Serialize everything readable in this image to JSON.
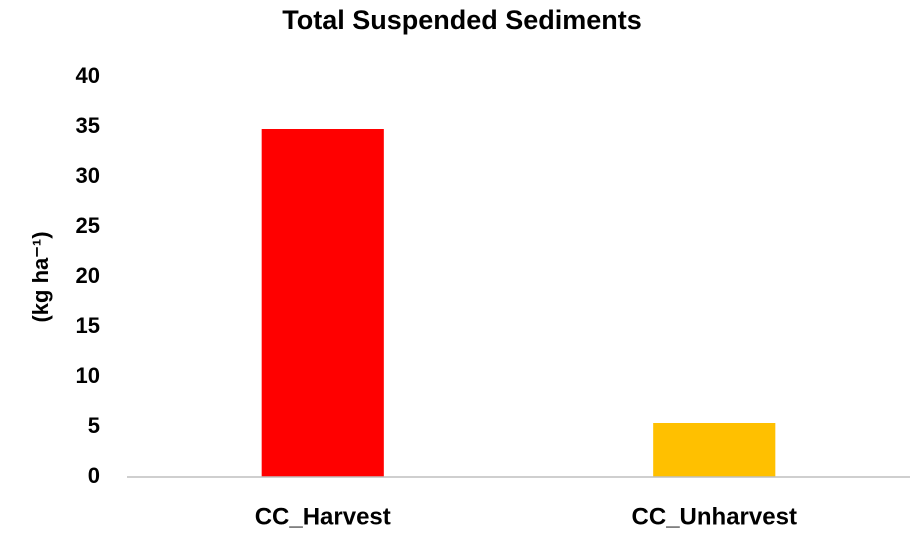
{
  "chart_data": {
    "type": "bar",
    "title": "Total Suspended Sediments",
    "ylabel": "(kg ha⁻¹)",
    "categories": [
      "CC_Harvest",
      "CC_Unharvest"
    ],
    "values": [
      34.8,
      5.4
    ],
    "colors": [
      "#ff0000",
      "#ffc000"
    ],
    "ylim": [
      0,
      40
    ],
    "yticks": [
      0,
      5,
      10,
      15,
      20,
      25,
      30,
      35,
      40
    ],
    "grid": false
  }
}
